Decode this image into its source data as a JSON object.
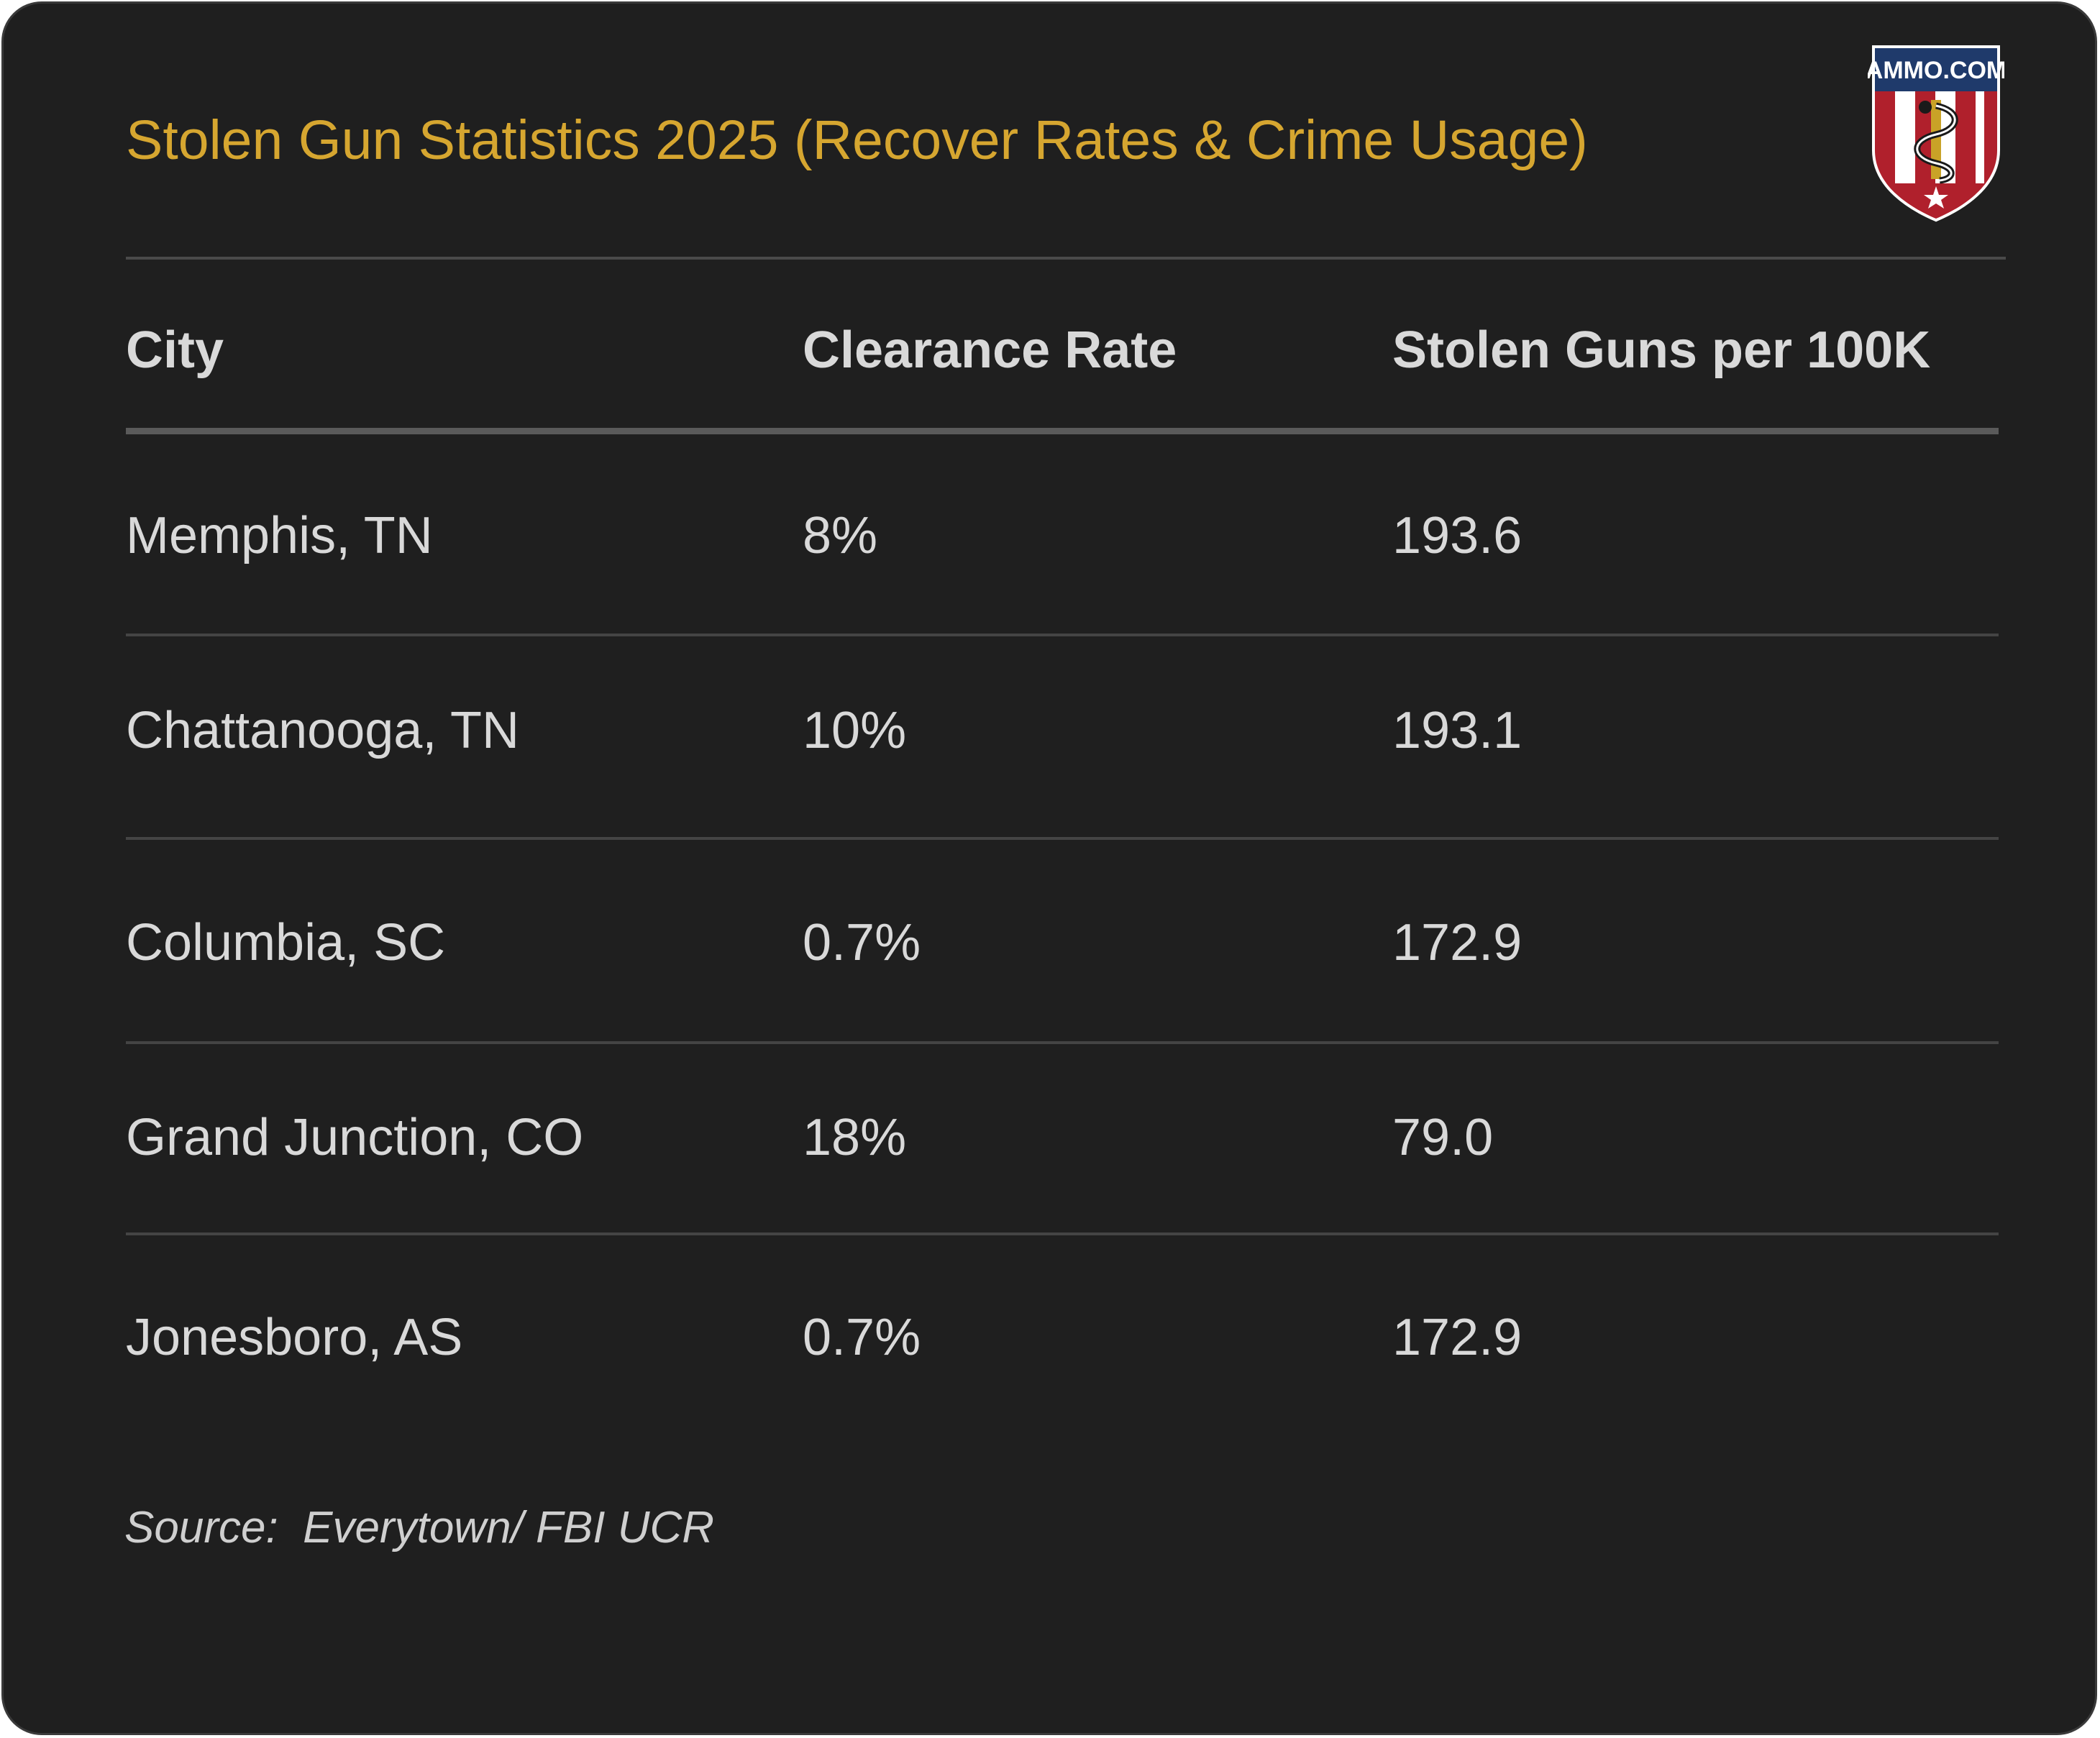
{
  "title": "Stolen Gun Statistics 2025 (Recover Rates & Crime Usage)",
  "logo": {
    "text": "AMMO.COM",
    "icon": "ammo-com-shield-logo",
    "colors": {
      "navy": "#1f3a6b",
      "red": "#b0202c",
      "white": "#ffffff",
      "gold": "#c9a227"
    }
  },
  "colors": {
    "background": "#1f1f1f",
    "title": "#d6a630",
    "text": "#d9d9d9",
    "rule": "#444444"
  },
  "chart_data": {
    "type": "table",
    "title": "Stolen Gun Statistics 2025 (Recover Rates & Crime Usage)",
    "columns": [
      "City",
      "Clearance Rate",
      "Stolen Guns per 100K"
    ],
    "rows": [
      [
        "Memphis, TN",
        "8%",
        "193.6"
      ],
      [
        "Chattanooga, TN",
        "10%",
        "193.1"
      ],
      [
        "Columbia, SC",
        "0.7%",
        "172.9"
      ],
      [
        "Grand Junction, CO",
        "18%",
        "79.0"
      ],
      [
        "Jonesboro, AS",
        "0.7%",
        "172.9"
      ]
    ],
    "source": "Source:  Everytown/ FBI UCR"
  }
}
